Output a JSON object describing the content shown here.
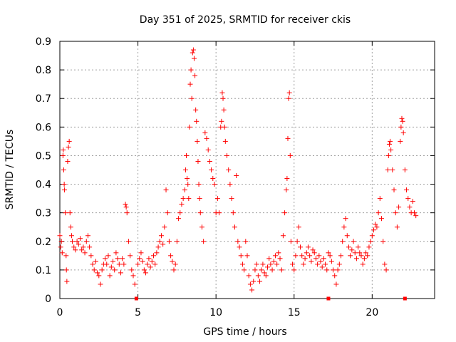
{
  "chart_data": {
    "type": "scatter",
    "title": "Day 351 of 2025, SRMTID for receiver ckis",
    "xlabel": "GPS time / hours",
    "ylabel": "SRMTID / TECUs",
    "xlim": [
      0,
      24
    ],
    "ylim": [
      0,
      0.9
    ],
    "xticks": [
      0,
      5,
      10,
      15,
      20
    ],
    "yticks": [
      0,
      0.1,
      0.2,
      0.3,
      0.4,
      0.5,
      0.6,
      0.7,
      0.8,
      0.9
    ],
    "xtick_labels": [
      "0",
      "5",
      "10",
      "15",
      "20"
    ],
    "ytick_labels": [
      "0",
      "0.1",
      "0.2",
      "0.3",
      "0.4",
      "0.5",
      "0.6",
      "0.7",
      "0.8",
      "0.9"
    ],
    "grid": true,
    "marker": "+",
    "color": "#ff0000",
    "series": [
      {
        "name": "SRMTID",
        "points": [
          [
            0.0,
            0.22
          ],
          [
            0.05,
            0.18
          ],
          [
            0.1,
            0.2
          ],
          [
            0.15,
            0.16
          ],
          [
            0.2,
            0.5
          ],
          [
            0.22,
            0.52
          ],
          [
            0.25,
            0.45
          ],
          [
            0.28,
            0.4
          ],
          [
            0.3,
            0.38
          ],
          [
            0.35,
            0.3
          ],
          [
            0.4,
            0.15
          ],
          [
            0.42,
            0.1
          ],
          [
            0.45,
            0.06
          ],
          [
            0.5,
            0.48
          ],
          [
            0.55,
            0.53
          ],
          [
            0.6,
            0.55
          ],
          [
            0.65,
            0.3
          ],
          [
            0.7,
            0.25
          ],
          [
            0.75,
            0.22
          ],
          [
            0.8,
            0.2
          ],
          [
            0.9,
            0.18
          ],
          [
            1.0,
            0.17
          ],
          [
            1.1,
            0.2
          ],
          [
            1.2,
            0.19
          ],
          [
            1.3,
            0.21
          ],
          [
            1.4,
            0.17
          ],
          [
            1.5,
            0.18
          ],
          [
            1.6,
            0.16
          ],
          [
            1.7,
            0.2
          ],
          [
            1.8,
            0.22
          ],
          [
            1.9,
            0.18
          ],
          [
            2.0,
            0.15
          ],
          [
            2.1,
            0.12
          ],
          [
            2.2,
            0.1
          ],
          [
            2.3,
            0.13
          ],
          [
            2.4,
            0.09
          ],
          [
            2.5,
            0.08
          ],
          [
            2.6,
            0.05
          ],
          [
            2.7,
            0.1
          ],
          [
            2.8,
            0.12
          ],
          [
            2.9,
            0.14
          ],
          [
            3.0,
            0.12
          ],
          [
            3.1,
            0.15
          ],
          [
            3.2,
            0.08
          ],
          [
            3.3,
            0.11
          ],
          [
            3.4,
            0.13
          ],
          [
            3.5,
            0.1
          ],
          [
            3.6,
            0.16
          ],
          [
            3.7,
            0.14
          ],
          [
            3.8,
            0.12
          ],
          [
            3.9,
            0.09
          ],
          [
            4.0,
            0.14
          ],
          [
            4.1,
            0.12
          ],
          [
            4.2,
            0.33
          ],
          [
            4.25,
            0.32
          ],
          [
            4.3,
            0.3
          ],
          [
            4.4,
            0.2
          ],
          [
            4.5,
            0.15
          ],
          [
            4.6,
            0.1
          ],
          [
            4.7,
            0.08
          ],
          [
            4.8,
            0.05
          ],
          [
            5.0,
            0.12
          ],
          [
            5.1,
            0.14
          ],
          [
            5.2,
            0.16
          ],
          [
            5.3,
            0.13
          ],
          [
            5.4,
            0.1
          ],
          [
            5.5,
            0.09
          ],
          [
            5.6,
            0.12
          ],
          [
            5.7,
            0.14
          ],
          [
            5.8,
            0.11
          ],
          [
            5.9,
            0.13
          ],
          [
            6.0,
            0.15
          ],
          [
            6.1,
            0.12
          ],
          [
            6.2,
            0.16
          ],
          [
            6.3,
            0.18
          ],
          [
            6.4,
            0.2
          ],
          [
            6.5,
            0.22
          ],
          [
            6.6,
            0.19
          ],
          [
            6.7,
            0.25
          ],
          [
            6.8,
            0.38
          ],
          [
            6.9,
            0.3
          ],
          [
            7.0,
            0.2
          ],
          [
            7.1,
            0.15
          ],
          [
            7.2,
            0.13
          ],
          [
            7.3,
            0.1
          ],
          [
            7.4,
            0.12
          ],
          [
            7.5,
            0.2
          ],
          [
            7.6,
            0.28
          ],
          [
            7.7,
            0.3
          ],
          [
            7.8,
            0.33
          ],
          [
            7.9,
            0.35
          ],
          [
            8.0,
            0.38
          ],
          [
            8.05,
            0.45
          ],
          [
            8.1,
            0.5
          ],
          [
            8.15,
            0.42
          ],
          [
            8.2,
            0.4
          ],
          [
            8.25,
            0.35
          ],
          [
            8.3,
            0.6
          ],
          [
            8.35,
            0.75
          ],
          [
            8.4,
            0.8
          ],
          [
            8.45,
            0.7
          ],
          [
            8.5,
            0.86
          ],
          [
            8.55,
            0.87
          ],
          [
            8.6,
            0.84
          ],
          [
            8.65,
            0.78
          ],
          [
            8.7,
            0.66
          ],
          [
            8.75,
            0.62
          ],
          [
            8.8,
            0.55
          ],
          [
            8.85,
            0.48
          ],
          [
            8.9,
            0.4
          ],
          [
            8.95,
            0.35
          ],
          [
            9.0,
            0.3
          ],
          [
            9.1,
            0.25
          ],
          [
            9.2,
            0.2
          ],
          [
            9.3,
            0.58
          ],
          [
            9.4,
            0.56
          ],
          [
            9.5,
            0.52
          ],
          [
            9.6,
            0.48
          ],
          [
            9.7,
            0.45
          ],
          [
            9.8,
            0.42
          ],
          [
            9.9,
            0.4
          ],
          [
            10.0,
            0.3
          ],
          [
            10.1,
            0.35
          ],
          [
            10.2,
            0.3
          ],
          [
            10.3,
            0.6
          ],
          [
            10.35,
            0.62
          ],
          [
            10.4,
            0.72
          ],
          [
            10.45,
            0.7
          ],
          [
            10.5,
            0.66
          ],
          [
            10.55,
            0.6
          ],
          [
            10.6,
            0.55
          ],
          [
            10.7,
            0.5
          ],
          [
            10.8,
            0.45
          ],
          [
            10.9,
            0.4
          ],
          [
            11.0,
            0.35
          ],
          [
            11.1,
            0.3
          ],
          [
            11.2,
            0.25
          ],
          [
            11.3,
            0.43
          ],
          [
            11.4,
            0.2
          ],
          [
            11.5,
            0.18
          ],
          [
            11.6,
            0.15
          ],
          [
            11.7,
            0.12
          ],
          [
            11.8,
            0.1
          ],
          [
            11.9,
            0.2
          ],
          [
            12.0,
            0.15
          ],
          [
            12.1,
            0.08
          ],
          [
            12.2,
            0.05
          ],
          [
            12.3,
            0.03
          ],
          [
            12.4,
            0.06
          ],
          [
            12.5,
            0.1
          ],
          [
            12.6,
            0.12
          ],
          [
            12.7,
            0.08
          ],
          [
            12.8,
            0.06
          ],
          [
            12.9,
            0.1
          ],
          [
            13.0,
            0.12
          ],
          [
            13.1,
            0.09
          ],
          [
            13.2,
            0.08
          ],
          [
            13.3,
            0.11
          ],
          [
            13.4,
            0.14
          ],
          [
            13.5,
            0.12
          ],
          [
            13.6,
            0.1
          ],
          [
            13.7,
            0.13
          ],
          [
            13.8,
            0.15
          ],
          [
            13.9,
            0.12
          ],
          [
            14.0,
            0.16
          ],
          [
            14.1,
            0.14
          ],
          [
            14.2,
            0.1
          ],
          [
            14.3,
            0.22
          ],
          [
            14.4,
            0.3
          ],
          [
            14.5,
            0.38
          ],
          [
            14.55,
            0.42
          ],
          [
            14.6,
            0.56
          ],
          [
            14.65,
            0.7
          ],
          [
            14.7,
            0.72
          ],
          [
            14.75,
            0.5
          ],
          [
            14.8,
            0.2
          ],
          [
            14.9,
            0.12
          ],
          [
            15.0,
            0.1
          ],
          [
            15.1,
            0.15
          ],
          [
            15.2,
            0.2
          ],
          [
            15.3,
            0.25
          ],
          [
            15.4,
            0.18
          ],
          [
            15.5,
            0.15
          ],
          [
            15.6,
            0.12
          ],
          [
            15.7,
            0.14
          ],
          [
            15.8,
            0.16
          ],
          [
            15.9,
            0.18
          ],
          [
            16.0,
            0.15
          ],
          [
            16.1,
            0.13
          ],
          [
            16.2,
            0.17
          ],
          [
            16.3,
            0.16
          ],
          [
            16.4,
            0.14
          ],
          [
            16.5,
            0.12
          ],
          [
            16.6,
            0.15
          ],
          [
            16.7,
            0.13
          ],
          [
            16.8,
            0.11
          ],
          [
            16.9,
            0.14
          ],
          [
            17.0,
            0.12
          ],
          [
            17.1,
            0.1
          ],
          [
            17.2,
            0.16
          ],
          [
            17.3,
            0.15
          ],
          [
            17.4,
            0.13
          ],
          [
            17.5,
            0.1
          ],
          [
            17.6,
            0.08
          ],
          [
            17.7,
            0.05
          ],
          [
            17.8,
            0.1
          ],
          [
            17.9,
            0.12
          ],
          [
            18.0,
            0.15
          ],
          [
            18.1,
            0.2
          ],
          [
            18.2,
            0.25
          ],
          [
            18.3,
            0.28
          ],
          [
            18.4,
            0.22
          ],
          [
            18.5,
            0.18
          ],
          [
            18.6,
            0.15
          ],
          [
            18.7,
            0.17
          ],
          [
            18.8,
            0.2
          ],
          [
            18.9,
            0.16
          ],
          [
            19.0,
            0.14
          ],
          [
            19.1,
            0.18
          ],
          [
            19.2,
            0.16
          ],
          [
            19.3,
            0.15
          ],
          [
            19.4,
            0.12
          ],
          [
            19.5,
            0.14
          ],
          [
            19.6,
            0.16
          ],
          [
            19.7,
            0.15
          ],
          [
            19.8,
            0.18
          ],
          [
            19.9,
            0.2
          ],
          [
            20.0,
            0.22
          ],
          [
            20.1,
            0.24
          ],
          [
            20.2,
            0.26
          ],
          [
            20.3,
            0.25
          ],
          [
            20.4,
            0.3
          ],
          [
            20.5,
            0.35
          ],
          [
            20.6,
            0.28
          ],
          [
            20.7,
            0.2
          ],
          [
            20.8,
            0.12
          ],
          [
            20.9,
            0.1
          ],
          [
            21.0,
            0.45
          ],
          [
            21.05,
            0.5
          ],
          [
            21.1,
            0.54
          ],
          [
            21.15,
            0.55
          ],
          [
            21.2,
            0.52
          ],
          [
            21.3,
            0.45
          ],
          [
            21.4,
            0.38
          ],
          [
            21.5,
            0.3
          ],
          [
            21.6,
            0.25
          ],
          [
            21.7,
            0.32
          ],
          [
            21.8,
            0.55
          ],
          [
            21.85,
            0.6
          ],
          [
            21.9,
            0.63
          ],
          [
            21.95,
            0.62
          ],
          [
            22.0,
            0.58
          ],
          [
            22.1,
            0.45
          ],
          [
            22.2,
            0.38
          ],
          [
            22.3,
            0.35
          ],
          [
            22.4,
            0.32
          ],
          [
            22.5,
            0.3
          ],
          [
            22.6,
            0.34
          ],
          [
            22.7,
            0.3
          ],
          [
            22.8,
            0.29
          ]
        ]
      }
    ],
    "zero_markers": [
      4.9,
      17.2,
      22.1
    ]
  }
}
